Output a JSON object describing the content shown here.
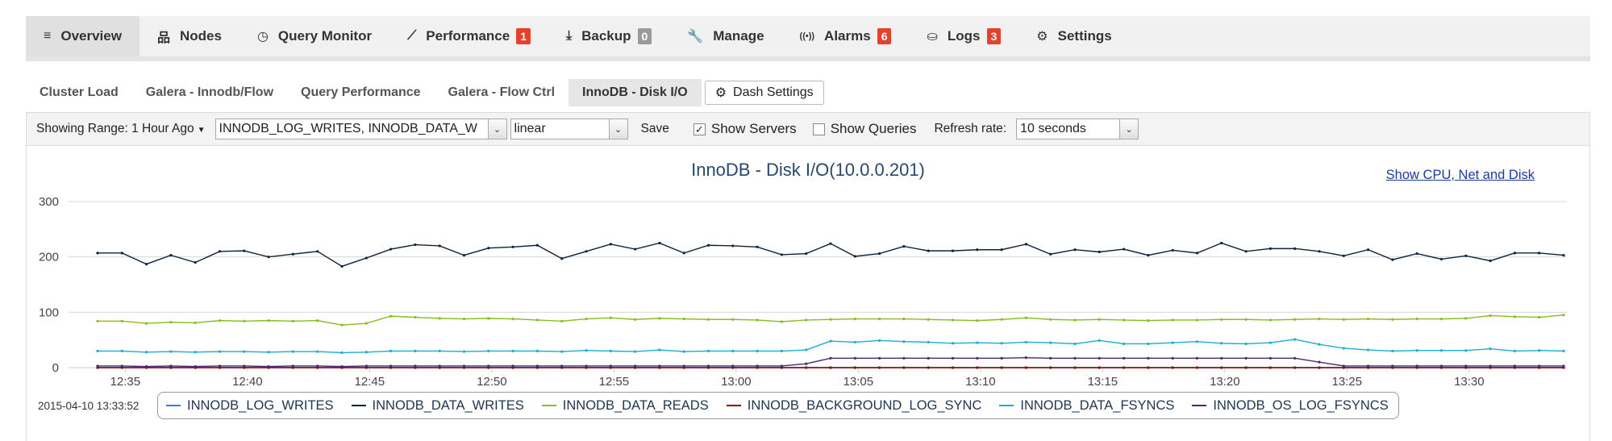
{
  "main_tabs": [
    {
      "label": "Overview",
      "icon": "list-icon",
      "active": true,
      "badge": null
    },
    {
      "label": "Nodes",
      "icon": "sitemap-icon",
      "active": false,
      "badge": null
    },
    {
      "label": "Query Monitor",
      "icon": "gauge-icon",
      "active": false,
      "badge": null
    },
    {
      "label": "Performance",
      "icon": "line-chart-icon",
      "active": false,
      "badge": "1",
      "badge_color": "red"
    },
    {
      "label": "Backup",
      "icon": "download-icon",
      "active": false,
      "badge": "0",
      "badge_color": "grey"
    },
    {
      "label": "Manage",
      "icon": "wrench-icon",
      "active": false,
      "badge": null
    },
    {
      "label": "Alarms",
      "icon": "broadcast-icon",
      "active": false,
      "badge": "6",
      "badge_color": "red"
    },
    {
      "label": "Logs",
      "icon": "inbox-icon",
      "active": false,
      "badge": "3",
      "badge_color": "red"
    },
    {
      "label": "Settings",
      "icon": "gear-icon",
      "active": false,
      "badge": null
    }
  ],
  "sub_tabs": [
    {
      "label": "Cluster Load",
      "active": false
    },
    {
      "label": "Galera - Innodb/Flow",
      "active": false
    },
    {
      "label": "Query Performance",
      "active": false
    },
    {
      "label": "Galera - Flow Ctrl",
      "active": false
    },
    {
      "label": "InnoDB - Disk I/O",
      "active": true
    }
  ],
  "dash_settings": {
    "label": "Dash Settings",
    "icon": "gear-icon"
  },
  "toolbar": {
    "range_label": "Showing Range: 1 Hour Ago",
    "metrics_value": "INNODB_LOG_WRITES, INNODB_DATA_W",
    "scale_value": "linear",
    "save_label": "Save",
    "show_servers_label": "Show Servers",
    "show_servers_checked": true,
    "show_queries_label": "Show Queries",
    "show_queries_checked": false,
    "refresh_label": "Refresh rate:",
    "refresh_value": "10 seconds"
  },
  "chart_header": {
    "show_link": "Show CPU, Net and Disk"
  },
  "timestamp": "2015-04-10 13:33:52",
  "colors": {
    "INNODB_LOG_WRITES": "#2f7ed8",
    "INNODB_DATA_WRITES": "#0d233a",
    "INNODB_DATA_READS": "#8bbc21",
    "INNODB_BACKGROUND_LOG_SYNC": "#910000",
    "INNODB_DATA_FSYNCS": "#1aadce",
    "INNODB_OS_LOG_FSYNCS": "#492970"
  },
  "chart_data": {
    "type": "line",
    "title": "InnoDB - Disk I/O(10.0.0.201)",
    "xlabel": "",
    "ylabel": "",
    "ylim": [
      0,
      300
    ],
    "yticks": [
      0,
      100,
      200,
      300
    ],
    "x_start": "12:33:52",
    "x_end": "13:33:52",
    "xticks": [
      "12:35",
      "12:40",
      "12:45",
      "12:50",
      "12:55",
      "13:00",
      "13:05",
      "13:10",
      "13:15",
      "13:20",
      "13:25",
      "13:30"
    ],
    "x": [
      "12:33:52",
      "12:34:52",
      "12:35:52",
      "12:36:52",
      "12:37:52",
      "12:38:52",
      "12:39:52",
      "12:40:52",
      "12:41:52",
      "12:42:52",
      "12:43:52",
      "12:44:52",
      "12:45:52",
      "12:46:52",
      "12:47:52",
      "12:48:52",
      "12:49:52",
      "12:50:52",
      "12:51:52",
      "12:52:52",
      "12:53:52",
      "12:54:52",
      "12:55:52",
      "12:56:52",
      "12:57:52",
      "12:58:52",
      "12:59:52",
      "13:00:52",
      "13:01:52",
      "13:02:52",
      "13:03:52",
      "13:04:52",
      "13:05:52",
      "13:06:52",
      "13:07:52",
      "13:08:52",
      "13:09:52",
      "13:10:52",
      "13:11:52",
      "13:12:52",
      "13:13:52",
      "13:14:52",
      "13:15:52",
      "13:16:52",
      "13:17:52",
      "13:18:52",
      "13:19:52",
      "13:20:52",
      "13:21:52",
      "13:22:52",
      "13:23:52",
      "13:24:52",
      "13:25:52",
      "13:26:52",
      "13:27:52",
      "13:28:52",
      "13:29:52",
      "13:30:52",
      "13:31:52",
      "13:32:52",
      "13:33:52"
    ],
    "series": [
      {
        "name": "INNODB_LOG_WRITES",
        "values": [
          0,
          0,
          0,
          0,
          0,
          0,
          0,
          0,
          0,
          0,
          0,
          0,
          0,
          0,
          0,
          0,
          0,
          0,
          0,
          0,
          0,
          0,
          0,
          0,
          0,
          0,
          0,
          0,
          0,
          0,
          0,
          0,
          0,
          0,
          0,
          0,
          0,
          0,
          0,
          0,
          0,
          0,
          0,
          0,
          0,
          0,
          0,
          0,
          0,
          0,
          0,
          0,
          0,
          0,
          0,
          0,
          0,
          0,
          0,
          0,
          0
        ]
      },
      {
        "name": "INNODB_DATA_WRITES",
        "values": [
          207,
          207,
          187,
          203,
          190,
          210,
          211,
          200,
          205,
          210,
          183,
          198,
          214,
          222,
          220,
          203,
          216,
          218,
          221,
          197,
          210,
          223,
          214,
          225,
          207,
          221,
          220,
          218,
          204,
          206,
          224,
          201,
          206,
          219,
          211,
          211,
          213,
          213,
          223,
          205,
          213,
          209,
          214,
          203,
          212,
          207,
          225,
          210,
          215,
          215,
          210,
          202,
          213,
          195,
          206,
          196,
          202,
          193,
          207,
          207,
          203
        ]
      },
      {
        "name": "INNODB_DATA_READS",
        "values": [
          84,
          84,
          80,
          82,
          81,
          85,
          84,
          85,
          84,
          85,
          77,
          80,
          93,
          91,
          89,
          88,
          89,
          88,
          86,
          84,
          88,
          90,
          87,
          89,
          88,
          87,
          87,
          86,
          83,
          86,
          87,
          88,
          88,
          88,
          87,
          86,
          85,
          87,
          90,
          87,
          86,
          87,
          86,
          85,
          86,
          86,
          87,
          87,
          86,
          87,
          88,
          87,
          88,
          87,
          88,
          88,
          89,
          94,
          92,
          91,
          95
        ]
      },
      {
        "name": "INNODB_BACKGROUND_LOG_SYNC",
        "values": [
          0,
          0,
          0,
          0,
          0,
          0,
          0,
          0,
          0,
          0,
          0,
          0,
          0,
          0,
          0,
          0,
          0,
          0,
          0,
          0,
          0,
          0,
          0,
          0,
          0,
          0,
          0,
          0,
          0,
          0,
          0,
          0,
          0,
          0,
          0,
          0,
          0,
          0,
          0,
          0,
          0,
          0,
          0,
          0,
          0,
          0,
          0,
          0,
          0,
          0,
          0,
          0,
          0,
          0,
          0,
          0,
          0,
          0,
          0,
          0,
          0
        ]
      },
      {
        "name": "INNODB_DATA_FSYNCS",
        "values": [
          30,
          30,
          28,
          29,
          28,
          29,
          29,
          28,
          29,
          29,
          27,
          28,
          30,
          30,
          30,
          29,
          30,
          30,
          30,
          29,
          31,
          30,
          29,
          32,
          29,
          30,
          30,
          30,
          30,
          32,
          48,
          46,
          49,
          47,
          46,
          44,
          45,
          44,
          46,
          45,
          43,
          49,
          43,
          43,
          45,
          47,
          44,
          43,
          45,
          51,
          42,
          35,
          32,
          30,
          31,
          31,
          31,
          34,
          30,
          31,
          30
        ]
      },
      {
        "name": "INNODB_OS_LOG_FSYNCS",
        "values": [
          3,
          3,
          2,
          3,
          2,
          3,
          3,
          2,
          3,
          3,
          2,
          3,
          3,
          3,
          3,
          3,
          3,
          3,
          3,
          3,
          3,
          3,
          3,
          3,
          3,
          3,
          3,
          3,
          3,
          7,
          17,
          17,
          17,
          17,
          17,
          17,
          17,
          17,
          18,
          17,
          17,
          17,
          17,
          17,
          17,
          17,
          17,
          17,
          17,
          17,
          10,
          3,
          3,
          3,
          3,
          3,
          3,
          3,
          3,
          3,
          3
        ]
      }
    ],
    "grid": true,
    "legend_position": "bottom"
  }
}
